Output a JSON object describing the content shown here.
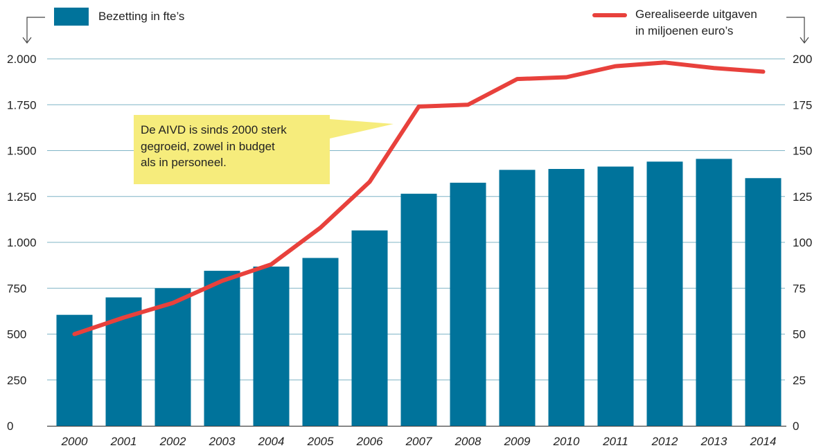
{
  "colors": {
    "bar": "#00739b",
    "line": "#e8413c",
    "grid": "#7fb4c6",
    "callout": "#f6ec7c",
    "axis": "#444444"
  },
  "legend": {
    "bars_label": "Bezetting in fte’s",
    "line_label_1": "Gerealiseerde uitgaven",
    "line_label_2": "in miljoenen euro’s"
  },
  "callout": {
    "line1": "De AIVD is sinds 2000 sterk",
    "line2": "gegroeid, zowel in budget",
    "line3": "als in personeel."
  },
  "chart_data": {
    "type": "bar",
    "categories": [
      "2000",
      "2001",
      "2002",
      "2003",
      "2004",
      "2005",
      "2006",
      "2007",
      "2008",
      "2009",
      "2010",
      "2011",
      "2012",
      "2013",
      "2014"
    ],
    "series": [
      {
        "name": "Bezetting in fte’s",
        "type": "bar",
        "axis": "left",
        "values": [
          605,
          700,
          750,
          845,
          868,
          915,
          1065,
          1265,
          1325,
          1395,
          1400,
          1413,
          1440,
          1455,
          1350
        ]
      },
      {
        "name": "Gerealiseerde uitgaven in miljoenen euro’s",
        "type": "line",
        "axis": "right",
        "values": [
          50,
          59,
          67,
          79,
          88,
          108,
          133,
          174,
          175,
          189,
          190,
          196,
          198,
          195,
          193
        ]
      }
    ],
    "y_left": {
      "ylim": [
        0,
        2000
      ],
      "ticks": [
        0,
        250,
        500,
        750,
        1000,
        1250,
        1500,
        1750,
        2000
      ],
      "tick_labels": [
        "0",
        "250",
        "500",
        "750",
        "1.000",
        "1.250",
        "1.500",
        "1.750",
        "2.000"
      ]
    },
    "y_right": {
      "ylim": [
        0,
        200
      ],
      "ticks": [
        0,
        25,
        50,
        75,
        100,
        125,
        150,
        175,
        200
      ],
      "tick_labels": [
        "0",
        "25",
        "50",
        "75",
        "100",
        "125",
        "150",
        "175",
        "200"
      ]
    },
    "grid": true,
    "legend_placement": "top"
  }
}
